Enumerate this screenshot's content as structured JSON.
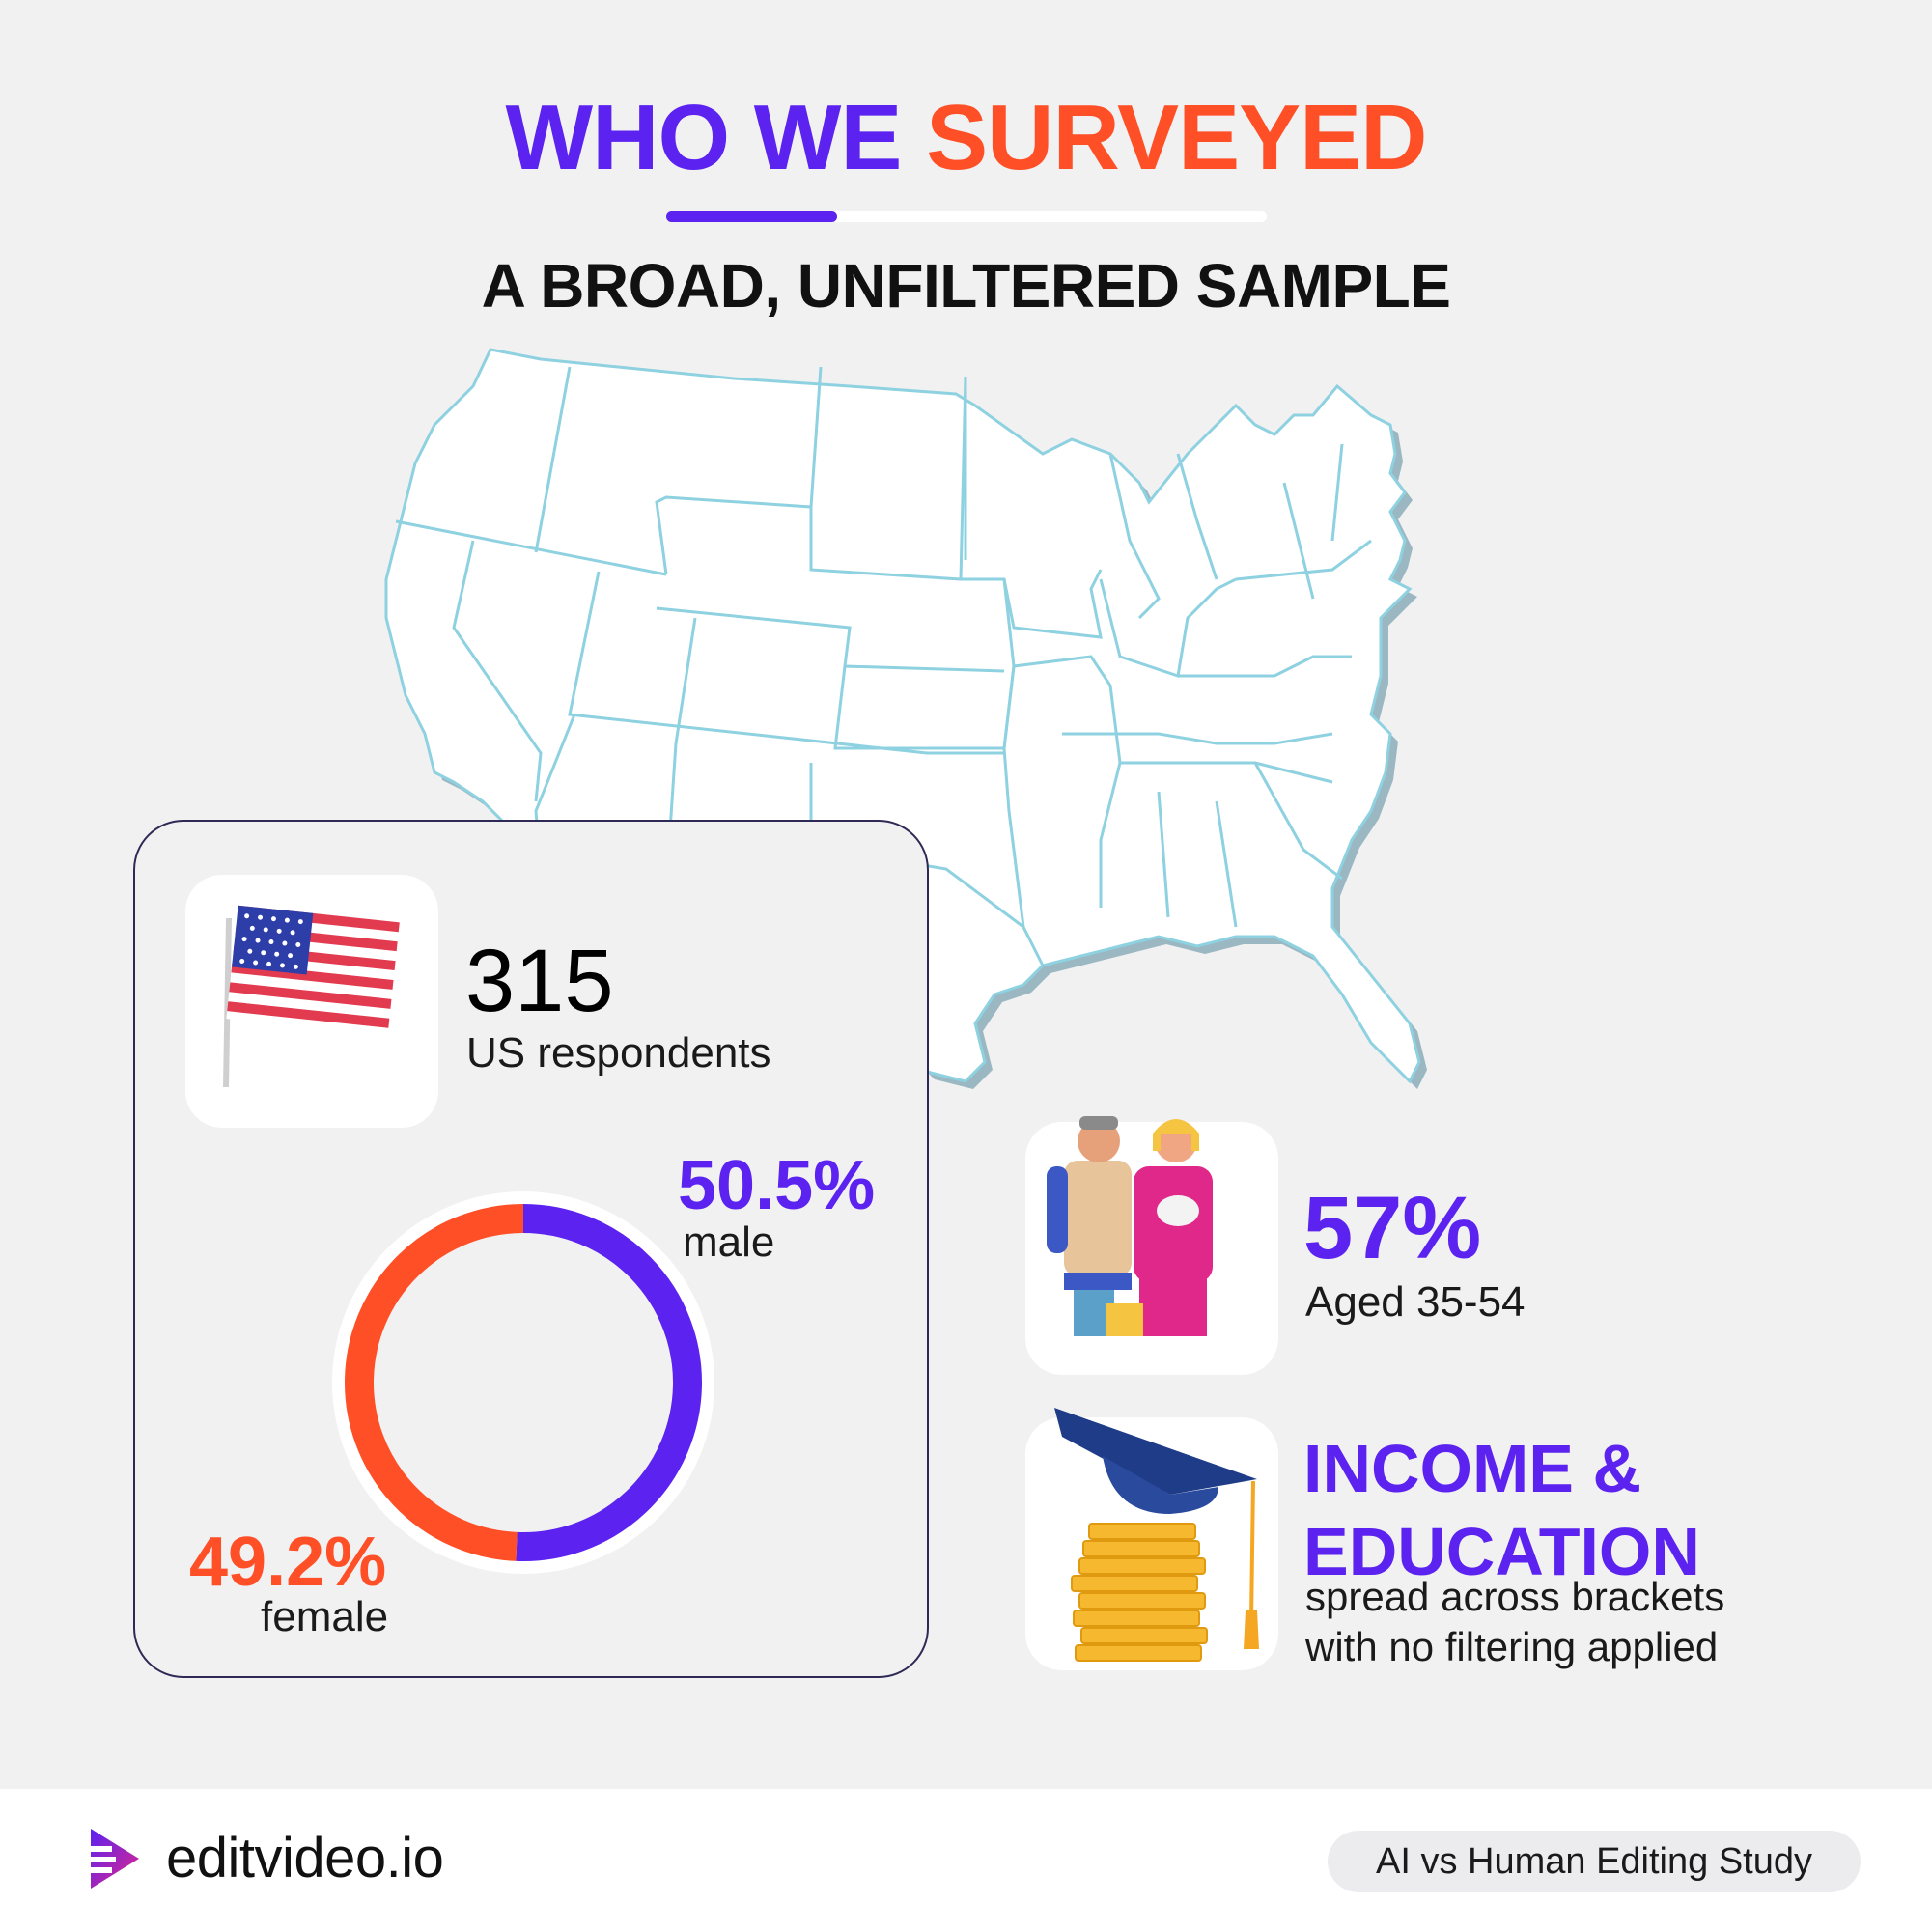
{
  "header": {
    "title_part1": "WHO WE",
    "title_part2": "SURVEYED",
    "subtitle": "A BROAD, UNFILTERED SAMPLE"
  },
  "respondents": {
    "count": "315",
    "label": "US respondents"
  },
  "gender": {
    "male_pct": "50.5%",
    "male_label": "male",
    "female_pct": "49.2%",
    "female_label": "female"
  },
  "age": {
    "pct": "57%",
    "label": "Aged 35-54"
  },
  "income_education": {
    "heading_line1": "INCOME &",
    "heading_line2": "EDUCATION",
    "desc_line1": "spread across brackets",
    "desc_line2": "with no filtering applied"
  },
  "footer": {
    "brand": "editvideo.io",
    "study": "AI vs Human Editing Study"
  },
  "chart_data": {
    "type": "pie",
    "categories": [
      "male",
      "female"
    ],
    "values": [
      50.5,
      49.2
    ],
    "colors": [
      "#5b22f0",
      "#ff4f26"
    ]
  },
  "colors": {
    "purple": "#5b22f0",
    "orange": "#ff4f26",
    "background": "#f1f1f2",
    "map_border": "#8ed1e0"
  }
}
